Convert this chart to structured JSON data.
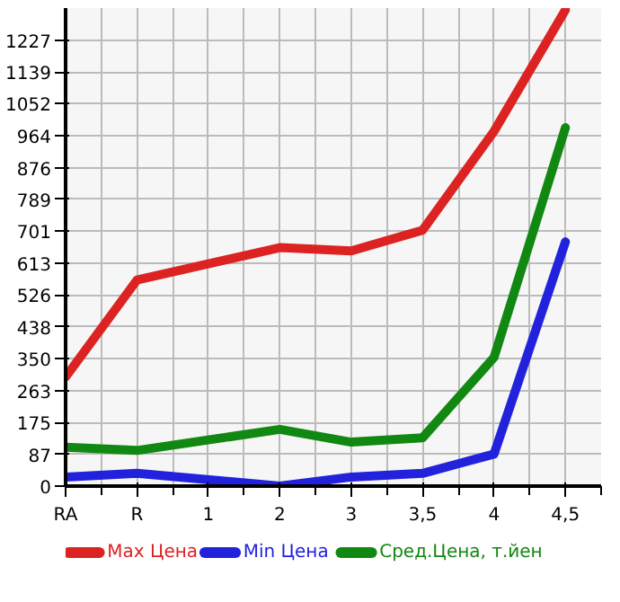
{
  "chart_data": {
    "type": "line",
    "categories": [
      "RA",
      "R",
      "1",
      "2",
      "3",
      "3,5",
      "4",
      "4,5"
    ],
    "ylim": [
      0,
      1315
    ],
    "yticks": [
      0,
      87,
      175,
      263,
      350,
      438,
      526,
      613,
      701,
      789,
      876,
      964,
      1052,
      1139,
      1227
    ],
    "grid": true,
    "legend": "bottom",
    "line_style": "solid",
    "marker": "none",
    "series": [
      {
        "name": "Max Цена",
        "color": "#dd2222",
        "values": [
          300,
          567,
          null,
          656,
          647,
          704,
          976,
          1310
        ]
      },
      {
        "name": "Min Цена",
        "color": "#2222dd",
        "values": [
          25,
          35,
          null,
          0,
          25,
          35,
          88,
          672
        ]
      },
      {
        "name": "Сред.Цена, т.йен",
        "color": "#118811",
        "values": [
          107,
          98,
          null,
          156,
          121,
          133,
          354,
          986
        ]
      }
    ]
  }
}
